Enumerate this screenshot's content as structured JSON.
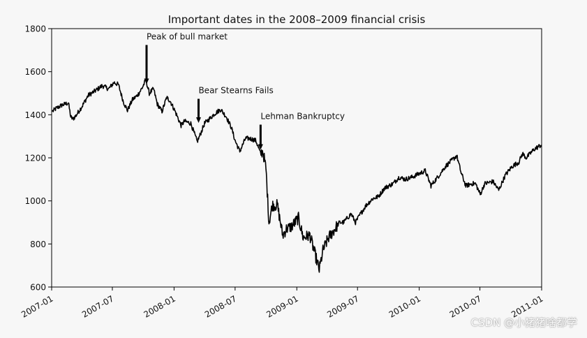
{
  "chart_data": {
    "type": "line",
    "title": "Important dates in the 2008–2009 financial crisis",
    "xlabel": "",
    "ylabel": "",
    "ylim": [
      600,
      1800
    ],
    "xlim": [
      "2007-01",
      "2011-01"
    ],
    "yticks": [
      600,
      800,
      1000,
      1200,
      1400,
      1600,
      1800
    ],
    "xticks": [
      "2007-01",
      "2007-07",
      "2008-01",
      "2008-07",
      "2009-01",
      "2009-07",
      "2010-01",
      "2010-07",
      "2011-01"
    ],
    "grid": false,
    "legend": "none",
    "line_color": "#000000",
    "series": [
      {
        "x": [
          "2007-01-03",
          "2007-01-15",
          "2007-02-01",
          "2007-02-20",
          "2007-02-27",
          "2007-03-05",
          "2007-03-14",
          "2007-04-02",
          "2007-04-20",
          "2007-05-10",
          "2007-06-01",
          "2007-06-20",
          "2007-07-06",
          "2007-07-19",
          "2007-08-03",
          "2007-08-15",
          "2007-08-30",
          "2007-09-14",
          "2007-09-28",
          "2007-10-09",
          "2007-10-19",
          "2007-11-01",
          "2007-11-12",
          "2007-11-26",
          "2007-12-10",
          "2007-12-20",
          "2008-01-03",
          "2008-01-22",
          "2008-02-01",
          "2008-02-20",
          "2008-03-10",
          "2008-03-17",
          "2008-04-01",
          "2008-04-15",
          "2008-05-01",
          "2008-05-19",
          "2008-06-05",
          "2008-06-20",
          "2008-07-01",
          "2008-07-15",
          "2008-08-01",
          "2008-08-14",
          "2008-09-01",
          "2008-09-15",
          "2008-09-22",
          "2008-10-01",
          "2008-10-10",
          "2008-10-20",
          "2008-11-04",
          "2008-11-20",
          "2008-12-01",
          "2008-12-16",
          "2009-01-06",
          "2009-01-20",
          "2009-02-09",
          "2009-02-23",
          "2009-03-09",
          "2009-03-20",
          "2009-04-06",
          "2009-04-20",
          "2009-05-08",
          "2009-05-20",
          "2009-06-12",
          "2009-06-25",
          "2009-07-10",
          "2009-07-27",
          "2009-08-15",
          "2009-09-01",
          "2009-09-20",
          "2009-10-15",
          "2009-11-02",
          "2009-11-20",
          "2009-12-10",
          "2010-01-19",
          "2010-02-05",
          "2010-02-25",
          "2010-03-20",
          "2010-04-23",
          "2010-05-06",
          "2010-05-20",
          "2010-06-07",
          "2010-06-18",
          "2010-07-02",
          "2010-07-15",
          "2010-08-09",
          "2010-08-26",
          "2010-09-15",
          "2010-10-05",
          "2010-10-25",
          "2010-11-05",
          "2010-11-16",
          "2010-12-10",
          "2010-12-31"
        ],
        "values": [
          1415,
          1430,
          1445,
          1455,
          1390,
          1380,
          1395,
          1440,
          1490,
          1510,
          1535,
          1520,
          1550,
          1540,
          1460,
          1420,
          1470,
          1490,
          1525,
          1562,
          1500,
          1520,
          1450,
          1415,
          1480,
          1465,
          1420,
          1350,
          1370,
          1360,
          1275,
          1300,
          1360,
          1380,
          1405,
          1425,
          1390,
          1340,
          1280,
          1230,
          1290,
          1290,
          1280,
          1220,
          1230,
          1150,
          900,
          980,
          980,
          840,
          870,
          880,
          920,
          830,
          840,
          760,
          680,
          770,
          830,
          860,
          900,
          900,
          940,
          900,
          940,
          980,
          1010,
          1020,
          1060,
          1080,
          1110,
          1100,
          1110,
          1140,
          1070,
          1110,
          1160,
          1210,
          1130,
          1070,
          1080,
          1080,
          1030,
          1080,
          1090,
          1050,
          1120,
          1160,
          1180,
          1220,
          1200,
          1240,
          1260
        ]
      }
    ],
    "annotations": [
      {
        "label": "Peak of bull market",
        "date": "2007-10-11",
        "value": 1565,
        "text_value": 1750
      },
      {
        "label": "Bear Stearns Fails",
        "date": "2008-03-14",
        "value": 1385,
        "text_value": 1500
      },
      {
        "label": "Lehman Bankruptcy",
        "date": "2008-09-15",
        "value": 1260,
        "text_value": 1380
      }
    ]
  },
  "watermark": "CSDN @小猪猪啥都学"
}
